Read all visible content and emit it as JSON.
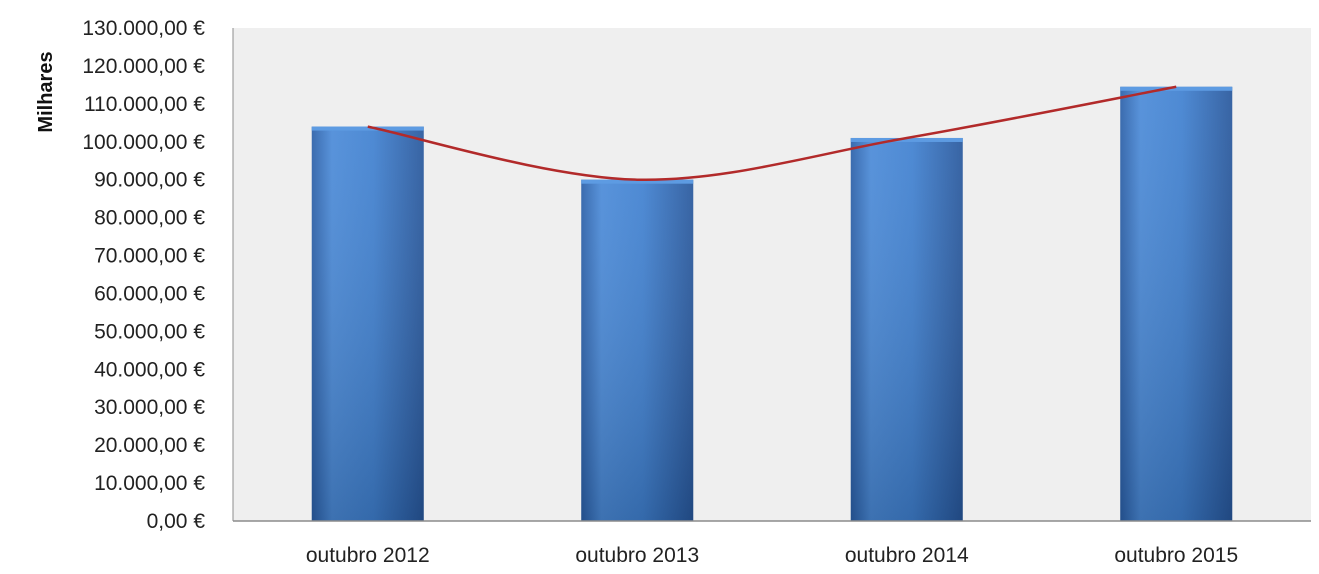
{
  "chart_data": {
    "type": "bar",
    "categories": [
      "outubro  2012",
      "outubro  2013",
      "outubro  2014",
      "outubro  2015"
    ],
    "values": [
      104000,
      90000,
      101000,
      114500
    ],
    "trendline": {
      "type": "polynomial",
      "color": "#b22a2a"
    },
    "title": "",
    "xlabel": "",
    "ylabel": "Milhares",
    "ylim": [
      0,
      130000
    ],
    "y_step": 10000,
    "y_tick_labels": [
      "0,00 €",
      "10.000,00 €",
      "20.000,00 €",
      "30.000,00 €",
      "40.000,00 €",
      "50.000,00 €",
      "60.000,00 €",
      "70.000,00 €",
      "80.000,00 €",
      "90.000,00 €",
      "100.000,00 €",
      "110.000,00 €",
      "120.000,00 €",
      "130.000,00 €"
    ],
    "grid": false,
    "legend": "none",
    "colors": {
      "bar": "#3a78c8",
      "bar_dark": "#2657a0",
      "plot_background": "#efefef",
      "trendline": "#b22a2a"
    }
  }
}
